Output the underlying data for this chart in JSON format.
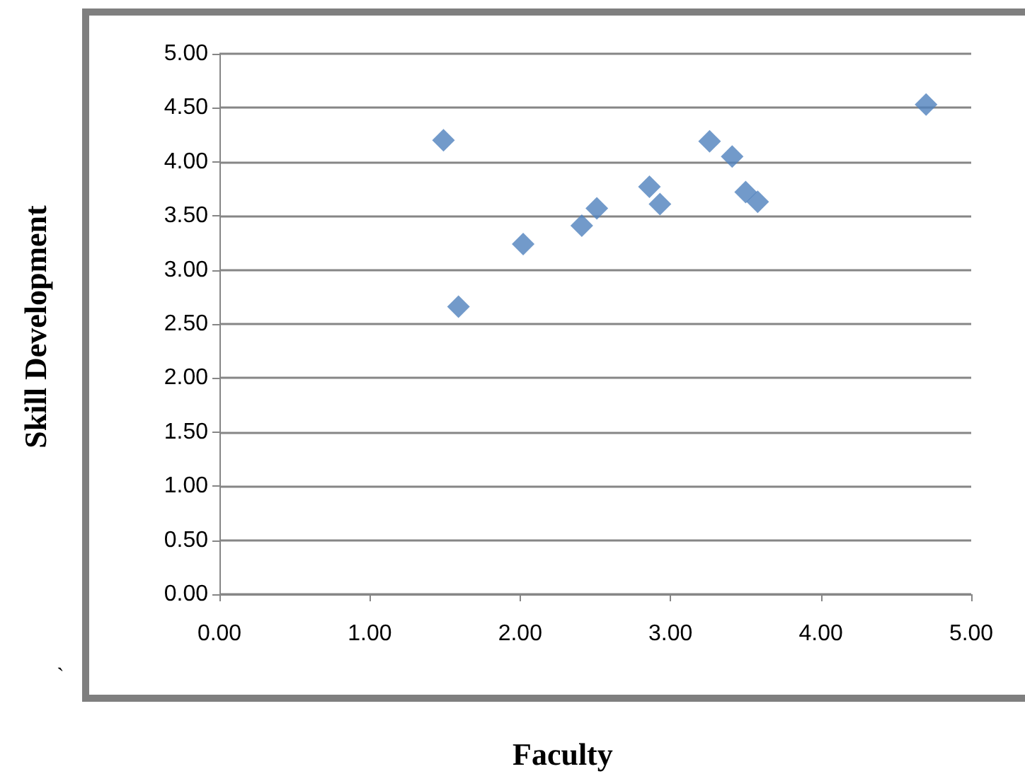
{
  "chart_data": {
    "type": "scatter",
    "xlabel": "Faculty",
    "ylabel": "Skill Development",
    "annotations": [
      "`"
    ],
    "x": [
      1.49,
      1.59,
      2.02,
      2.41,
      2.51,
      2.86,
      2.93,
      3.26,
      3.41,
      3.5,
      3.58,
      4.7
    ],
    "series": [
      {
        "color": "#4f81bd",
        "values": [
          4.2,
          2.66,
          3.24,
          3.41,
          3.57,
          3.77,
          3.61,
          4.19,
          4.05,
          3.72,
          3.63,
          4.53
        ]
      }
    ],
    "xlim": [
      0,
      5
    ],
    "xticks": [
      {
        "value": 0,
        "label": "0.00"
      },
      {
        "value": 1,
        "label": "1.00"
      },
      {
        "value": 2,
        "label": "2.00"
      },
      {
        "value": 3,
        "label": "3.00"
      },
      {
        "value": 4,
        "label": "4.00"
      },
      {
        "value": 5,
        "label": "5.00"
      }
    ],
    "ylim": [
      0,
      5
    ],
    "yticks": [
      {
        "value": 0,
        "label": "0.00"
      },
      {
        "value": 0.5,
        "label": "0.50"
      },
      {
        "value": 1,
        "label": "1.00"
      },
      {
        "value": 1.5,
        "label": "1.50"
      },
      {
        "value": 2,
        "label": "2.00"
      },
      {
        "value": 2.5,
        "label": "2.50"
      },
      {
        "value": 3,
        "label": "3.00"
      },
      {
        "value": 3.5,
        "label": "3.50"
      },
      {
        "value": 4,
        "label": "4.00"
      },
      {
        "value": 4.5,
        "label": "4.50"
      },
      {
        "value": 5,
        "label": "5.00"
      }
    ],
    "grid": "y",
    "marker": "diamond"
  }
}
